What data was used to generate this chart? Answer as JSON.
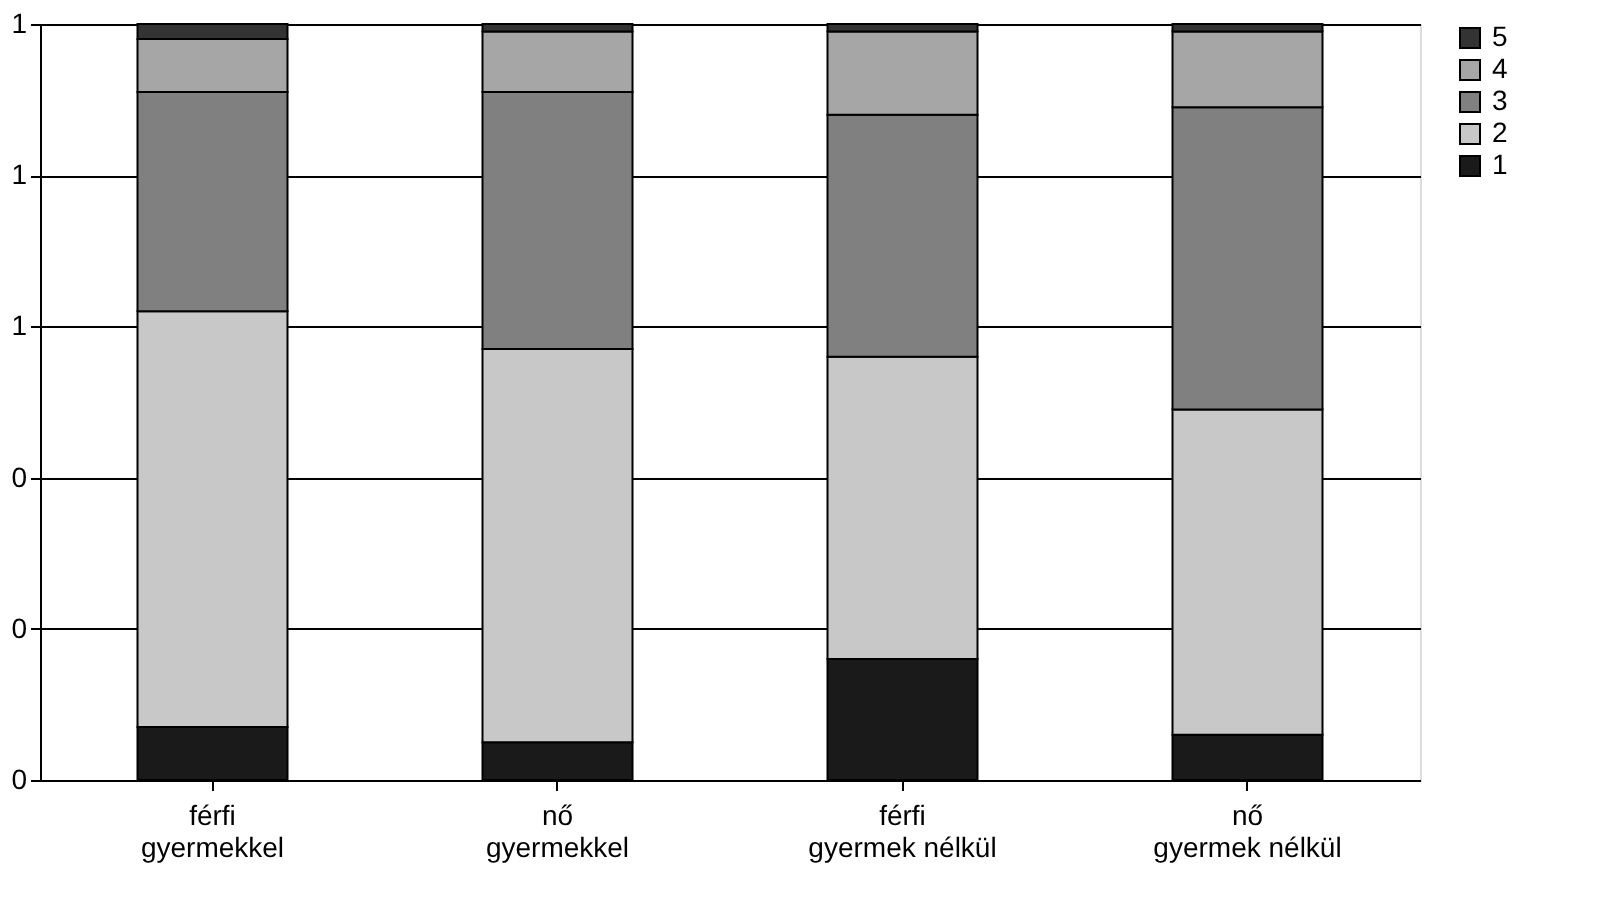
{
  "chart_data": {
    "type": "bar",
    "stacked": true,
    "categories": [
      "férfi\ngyermekkel",
      "nő\ngyermekkel",
      "férfi\ngyermek  nélkül",
      "nő\ngyermek  nélkül"
    ],
    "series": [
      {
        "name": "1",
        "color": "#1a1a1a",
        "values": [
          0.07,
          0.05,
          0.16,
          0.06
        ]
      },
      {
        "name": "2",
        "color": "#c8c8c8",
        "values": [
          0.55,
          0.52,
          0.4,
          0.43
        ]
      },
      {
        "name": "3",
        "color": "#808080",
        "values": [
          0.29,
          0.34,
          0.32,
          0.4
        ]
      },
      {
        "name": "4",
        "color": "#a6a6a6",
        "values": [
          0.07,
          0.08,
          0.11,
          0.1
        ]
      },
      {
        "name": "5",
        "color": "#333333",
        "values": [
          0.02,
          0.01,
          0.01,
          0.01
        ]
      }
    ],
    "ylim": [
      0,
      1
    ],
    "yticks": [
      {
        "value": 0,
        "label": "0"
      },
      {
        "value": 0.2,
        "label": "0"
      },
      {
        "value": 0.4,
        "label": "0"
      },
      {
        "value": 0.6,
        "label": "1"
      },
      {
        "value": 0.8,
        "label": "1"
      },
      {
        "value": 1,
        "label": "1"
      }
    ],
    "grid": "y",
    "legend": "right"
  }
}
